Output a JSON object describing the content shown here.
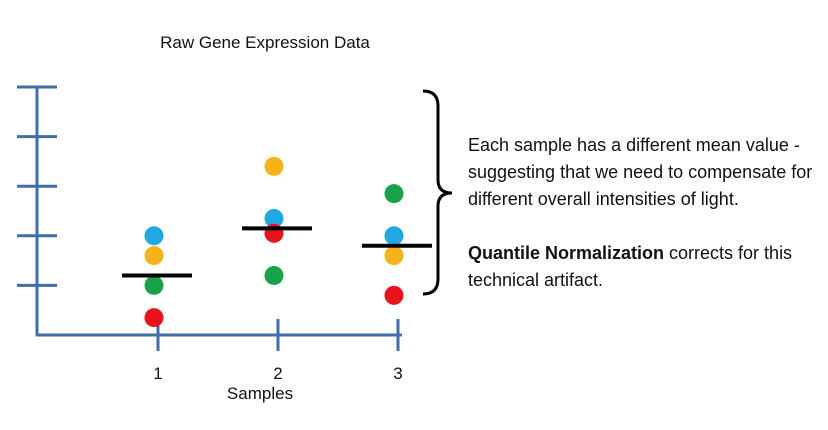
{
  "chart_data": {
    "type": "scatter",
    "title": "Raw Gene Expression Data",
    "xlabel": "Samples",
    "ylabel": "",
    "categories": [
      "1",
      "2",
      "3"
    ],
    "ylim": [
      0,
      5
    ],
    "grid": false,
    "series": [
      {
        "color": "#22a8e0",
        "values": [
          2.0,
          2.35,
          2.0
        ]
      },
      {
        "color": "#f5b21b",
        "values": [
          1.6,
          3.4,
          1.6
        ]
      },
      {
        "color": "#18a34a",
        "values": [
          1.0,
          1.2,
          2.85
        ]
      },
      {
        "color": "#e8141b",
        "values": [
          0.35,
          2.05,
          0.8
        ]
      }
    ],
    "means": [
      1.2,
      2.15,
      1.8
    ],
    "mean_color": "#000000",
    "axis_color": "#3f6ea8"
  },
  "annotation": {
    "line1": "Each sample has a different mean value - suggesting that we need to compensate for different overall intensities of light.",
    "bold": "Quantile Normalization",
    "rest": " corrects for this technical artifact."
  }
}
